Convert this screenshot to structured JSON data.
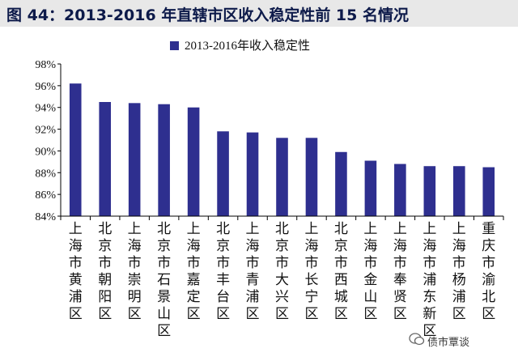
{
  "header": {
    "title": "图 44：2013-2016 年直辖市区收入稳定性前 15 名情况"
  },
  "watermark": {
    "text": "债市覃谈"
  },
  "colors": {
    "bar": "#2e2f8f",
    "title_bg": "#e8e8e8",
    "title_text": "#0d1a4a",
    "axis": "#000000"
  },
  "chart_data": {
    "type": "bar",
    "title": "",
    "legend": {
      "position": "top",
      "label": "2013-2016年收入稳定性"
    },
    "xlabel": "",
    "ylabel": "",
    "ylim": [
      84,
      98
    ],
    "yticks": [
      "84%",
      "86%",
      "88%",
      "90%",
      "92%",
      "94%",
      "96%",
      "98%"
    ],
    "categories": [
      "上海市黄浦区",
      "北京市朝阳区",
      "上海市崇明区",
      "北京市石景山区",
      "上海市嘉定区",
      "北京市丰台区",
      "上海市青浦区",
      "北京市大兴区",
      "上海市长宁区",
      "北京市西城区",
      "上海市金山区",
      "上海市奉贤区",
      "上海市浦东新区",
      "上海市杨浦区",
      "重庆市渝北区"
    ],
    "series": [
      {
        "name": "2013-2016年收入稳定性",
        "values": [
          96.2,
          94.5,
          94.4,
          94.3,
          94.0,
          91.8,
          91.7,
          91.2,
          91.2,
          89.9,
          89.1,
          88.8,
          88.6,
          88.6,
          88.5
        ]
      }
    ]
  }
}
